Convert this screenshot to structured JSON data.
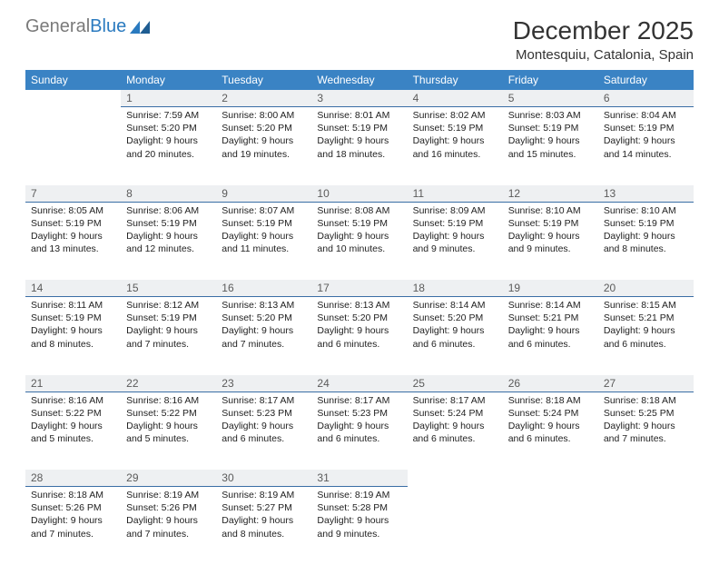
{
  "logo": {
    "general": "General",
    "blue": "Blue"
  },
  "header": {
    "month": "December 2025",
    "location": "Montesquiu, Catalonia, Spain"
  },
  "colors": {
    "header_bg": "#3a83c4",
    "daynum_bg": "#eef0f2",
    "daynum_border": "#3a6ea5",
    "text": "#222222",
    "logo_gray": "#7a7a7a",
    "logo_blue": "#2a7abf"
  },
  "day_labels": [
    "Sunday",
    "Monday",
    "Tuesday",
    "Wednesday",
    "Thursday",
    "Friday",
    "Saturday"
  ],
  "weeks": [
    {
      "nums": [
        "",
        "1",
        "2",
        "3",
        "4",
        "5",
        "6"
      ],
      "cells": [
        null,
        {
          "sunrise": "Sunrise: 7:59 AM",
          "sunset": "Sunset: 5:20 PM",
          "daylight": "Daylight: 9 hours and 20 minutes."
        },
        {
          "sunrise": "Sunrise: 8:00 AM",
          "sunset": "Sunset: 5:20 PM",
          "daylight": "Daylight: 9 hours and 19 minutes."
        },
        {
          "sunrise": "Sunrise: 8:01 AM",
          "sunset": "Sunset: 5:19 PM",
          "daylight": "Daylight: 9 hours and 18 minutes."
        },
        {
          "sunrise": "Sunrise: 8:02 AM",
          "sunset": "Sunset: 5:19 PM",
          "daylight": "Daylight: 9 hours and 16 minutes."
        },
        {
          "sunrise": "Sunrise: 8:03 AM",
          "sunset": "Sunset: 5:19 PM",
          "daylight": "Daylight: 9 hours and 15 minutes."
        },
        {
          "sunrise": "Sunrise: 8:04 AM",
          "sunset": "Sunset: 5:19 PM",
          "daylight": "Daylight: 9 hours and 14 minutes."
        }
      ]
    },
    {
      "nums": [
        "7",
        "8",
        "9",
        "10",
        "11",
        "12",
        "13"
      ],
      "cells": [
        {
          "sunrise": "Sunrise: 8:05 AM",
          "sunset": "Sunset: 5:19 PM",
          "daylight": "Daylight: 9 hours and 13 minutes."
        },
        {
          "sunrise": "Sunrise: 8:06 AM",
          "sunset": "Sunset: 5:19 PM",
          "daylight": "Daylight: 9 hours and 12 minutes."
        },
        {
          "sunrise": "Sunrise: 8:07 AM",
          "sunset": "Sunset: 5:19 PM",
          "daylight": "Daylight: 9 hours and 11 minutes."
        },
        {
          "sunrise": "Sunrise: 8:08 AM",
          "sunset": "Sunset: 5:19 PM",
          "daylight": "Daylight: 9 hours and 10 minutes."
        },
        {
          "sunrise": "Sunrise: 8:09 AM",
          "sunset": "Sunset: 5:19 PM",
          "daylight": "Daylight: 9 hours and 9 minutes."
        },
        {
          "sunrise": "Sunrise: 8:10 AM",
          "sunset": "Sunset: 5:19 PM",
          "daylight": "Daylight: 9 hours and 9 minutes."
        },
        {
          "sunrise": "Sunrise: 8:10 AM",
          "sunset": "Sunset: 5:19 PM",
          "daylight": "Daylight: 9 hours and 8 minutes."
        }
      ]
    },
    {
      "nums": [
        "14",
        "15",
        "16",
        "17",
        "18",
        "19",
        "20"
      ],
      "cells": [
        {
          "sunrise": "Sunrise: 8:11 AM",
          "sunset": "Sunset: 5:19 PM",
          "daylight": "Daylight: 9 hours and 8 minutes."
        },
        {
          "sunrise": "Sunrise: 8:12 AM",
          "sunset": "Sunset: 5:19 PM",
          "daylight": "Daylight: 9 hours and 7 minutes."
        },
        {
          "sunrise": "Sunrise: 8:13 AM",
          "sunset": "Sunset: 5:20 PM",
          "daylight": "Daylight: 9 hours and 7 minutes."
        },
        {
          "sunrise": "Sunrise: 8:13 AM",
          "sunset": "Sunset: 5:20 PM",
          "daylight": "Daylight: 9 hours and 6 minutes."
        },
        {
          "sunrise": "Sunrise: 8:14 AM",
          "sunset": "Sunset: 5:20 PM",
          "daylight": "Daylight: 9 hours and 6 minutes."
        },
        {
          "sunrise": "Sunrise: 8:14 AM",
          "sunset": "Sunset: 5:21 PM",
          "daylight": "Daylight: 9 hours and 6 minutes."
        },
        {
          "sunrise": "Sunrise: 8:15 AM",
          "sunset": "Sunset: 5:21 PM",
          "daylight": "Daylight: 9 hours and 6 minutes."
        }
      ]
    },
    {
      "nums": [
        "21",
        "22",
        "23",
        "24",
        "25",
        "26",
        "27"
      ],
      "cells": [
        {
          "sunrise": "Sunrise: 8:16 AM",
          "sunset": "Sunset: 5:22 PM",
          "daylight": "Daylight: 9 hours and 5 minutes."
        },
        {
          "sunrise": "Sunrise: 8:16 AM",
          "sunset": "Sunset: 5:22 PM",
          "daylight": "Daylight: 9 hours and 5 minutes."
        },
        {
          "sunrise": "Sunrise: 8:17 AM",
          "sunset": "Sunset: 5:23 PM",
          "daylight": "Daylight: 9 hours and 6 minutes."
        },
        {
          "sunrise": "Sunrise: 8:17 AM",
          "sunset": "Sunset: 5:23 PM",
          "daylight": "Daylight: 9 hours and 6 minutes."
        },
        {
          "sunrise": "Sunrise: 8:17 AM",
          "sunset": "Sunset: 5:24 PM",
          "daylight": "Daylight: 9 hours and 6 minutes."
        },
        {
          "sunrise": "Sunrise: 8:18 AM",
          "sunset": "Sunset: 5:24 PM",
          "daylight": "Daylight: 9 hours and 6 minutes."
        },
        {
          "sunrise": "Sunrise: 8:18 AM",
          "sunset": "Sunset: 5:25 PM",
          "daylight": "Daylight: 9 hours and 7 minutes."
        }
      ]
    },
    {
      "nums": [
        "28",
        "29",
        "30",
        "31",
        "",
        "",
        ""
      ],
      "cells": [
        {
          "sunrise": "Sunrise: 8:18 AM",
          "sunset": "Sunset: 5:26 PM",
          "daylight": "Daylight: 9 hours and 7 minutes."
        },
        {
          "sunrise": "Sunrise: 8:19 AM",
          "sunset": "Sunset: 5:26 PM",
          "daylight": "Daylight: 9 hours and 7 minutes."
        },
        {
          "sunrise": "Sunrise: 8:19 AM",
          "sunset": "Sunset: 5:27 PM",
          "daylight": "Daylight: 9 hours and 8 minutes."
        },
        {
          "sunrise": "Sunrise: 8:19 AM",
          "sunset": "Sunset: 5:28 PM",
          "daylight": "Daylight: 9 hours and 9 minutes."
        },
        null,
        null,
        null
      ]
    }
  ]
}
